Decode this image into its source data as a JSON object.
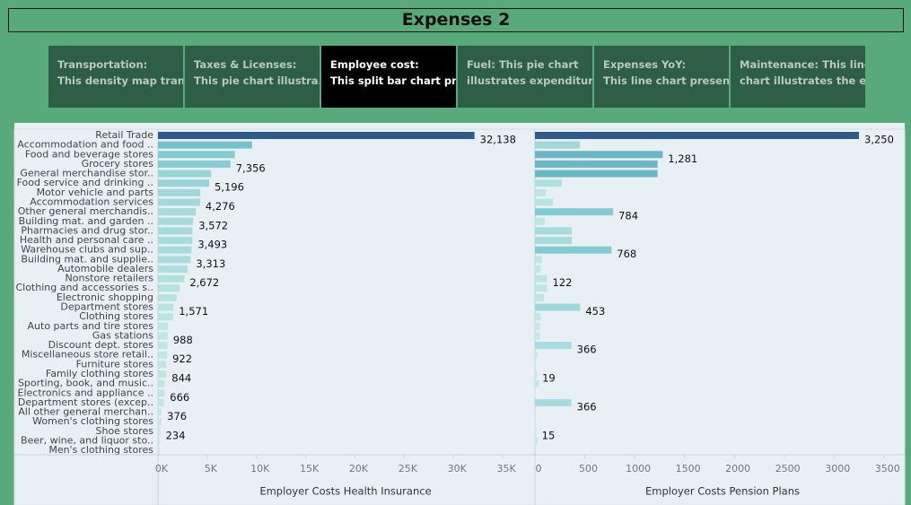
{
  "header": {
    "title": "Expenses 2"
  },
  "tabs": [
    {
      "title": "Transportation:",
      "description": "This density map tran..",
      "selected": false
    },
    {
      "title": "Taxes & Licenses:",
      "description": "This pie chart  illustra..",
      "selected": false
    },
    {
      "title": "Employee cost:",
      "description": "This split bar chart pr..",
      "selected": true
    },
    {
      "title": "Fuel: This pie chart",
      "description": "illustrates expenditur..",
      "selected": false
    },
    {
      "title": "Expenses YoY:",
      "description": "This line chart presen..",
      "selected": false
    },
    {
      "title": "Maintenance: This line",
      "description": "chart illustrates the e..",
      "selected": false
    }
  ],
  "chart_data": {
    "type": "split-bar",
    "categories": [
      "Retail Trade",
      "Accommodation and food ..",
      "Food and beverage stores",
      "Grocery stores",
      "General merchandise stor..",
      "Food service and drinking ..",
      "Motor vehicle and parts",
      "Accommodation services",
      "Other general merchandis..",
      "Building mat. and garden ..",
      "Pharmacies and drug stor..",
      "Health and personal care ..",
      "Warehouse clubs and sup..",
      "Building mat. and supplie..",
      "Automobile dealers",
      "Nonstore retailers",
      "Clothing and accessories s..",
      "Electronic shopping",
      "Department stores",
      "Clothing stores",
      "Auto parts and tire stores",
      "Gas stations",
      "Discount dept. stores",
      "Miscellaneous store retail..",
      "Furniture stores",
      "Family clothing stores",
      "Sporting, book, and music..",
      "Electronics and appliance ..",
      "Department stores (excep..",
      "All other general merchan..",
      "Women's clothing stores",
      "Shoe stores",
      "Beer, wine, and liquor sto..",
      "Men's clothing stores"
    ],
    "color_stops": [
      "#c6ebe4",
      "#72c3cd",
      "#2e5b8c"
    ],
    "series": [
      {
        "name": "Employer Costs Health Insurance",
        "values": [
          32138,
          9550,
          7800,
          7356,
          5400,
          5196,
          4300,
          4276,
          3850,
          3572,
          3500,
          3493,
          3400,
          3313,
          3000,
          2672,
          2200,
          1900,
          1571,
          1550,
          1000,
          988,
          950,
          922,
          850,
          844,
          700,
          666,
          600,
          376,
          350,
          234,
          200,
          150
        ],
        "value_labels": [
          "32,138",
          null,
          null,
          "7,356",
          null,
          "5,196",
          null,
          "4,276",
          null,
          "3,572",
          null,
          "3,493",
          null,
          "3,313",
          null,
          "2,672",
          null,
          null,
          "1,571",
          null,
          null,
          "988",
          null,
          "922",
          null,
          "844",
          null,
          "666",
          null,
          "376",
          null,
          "234",
          null,
          null
        ],
        "xlim": [
          0,
          38000
        ],
        "xticks": [
          {
            "value": 0,
            "label": "0K"
          },
          {
            "value": 5000,
            "label": "5K"
          },
          {
            "value": 10000,
            "label": "10K"
          },
          {
            "value": 15000,
            "label": "15K"
          },
          {
            "value": 20000,
            "label": "20K"
          },
          {
            "value": 25000,
            "label": "25K"
          },
          {
            "value": 30000,
            "label": "30K"
          },
          {
            "value": 35000,
            "label": "35K"
          }
        ]
      },
      {
        "name": "Employer Costs Pension Plans",
        "values": [
          3250,
          450,
          1281,
          1230,
          1230,
          270,
          110,
          180,
          784,
          100,
          370,
          370,
          768,
          70,
          60,
          122,
          120,
          90,
          453,
          60,
          50,
          50,
          366,
          25,
          10,
          19,
          40,
          5,
          366,
          0,
          5,
          15,
          30,
          0
        ],
        "value_labels": [
          "3,250",
          null,
          "1,281",
          null,
          null,
          null,
          null,
          null,
          "784",
          null,
          null,
          null,
          "768",
          null,
          null,
          "122",
          null,
          null,
          "453",
          null,
          null,
          null,
          "366",
          null,
          null,
          "19",
          null,
          null,
          "366",
          null,
          null,
          "15",
          null,
          null
        ],
        "xlim": [
          0,
          3700
        ],
        "xticks": [
          0,
          500,
          1000,
          1500,
          2000,
          2500,
          3000,
          3500
        ]
      }
    ]
  }
}
